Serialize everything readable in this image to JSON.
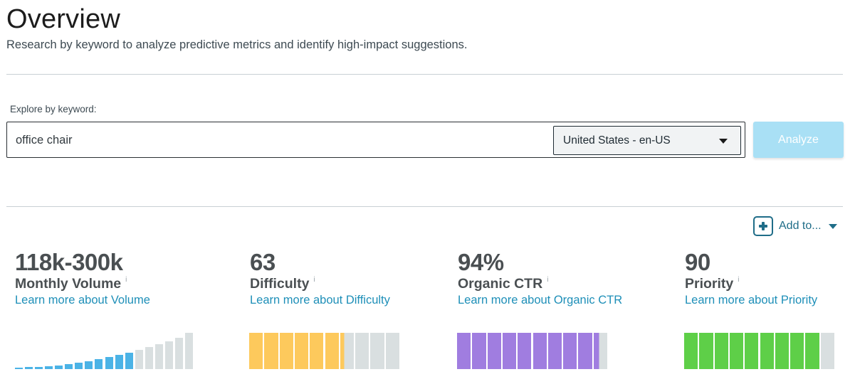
{
  "header": {
    "title": "Overview",
    "subtitle": "Research by keyword to analyze predictive metrics and identify high-impact suggestions."
  },
  "search": {
    "label": "Explore by keyword:",
    "value": "office chair",
    "locale": "United States - en-US",
    "analyze_label": "Analyze"
  },
  "add_to": {
    "label": "Add to..."
  },
  "metrics": [
    {
      "value": "118k-300k",
      "label": "Monthly Volume",
      "info": "i",
      "link": "Learn more about Volume",
      "type": "volume",
      "levels": [
        0.04,
        0.05,
        0.06,
        0.08,
        0.1,
        0.13,
        0.17,
        0.21,
        0.27,
        0.33,
        0.4,
        0.45,
        0.52,
        0.6,
        0.68,
        0.77,
        0.87,
        1.0
      ],
      "active_count": 12,
      "active_color": "#4bb3e6",
      "inactive_color": "#d9dfe0"
    },
    {
      "value": "63",
      "label": "Difficulty",
      "info": "i",
      "link": "Learn more about Difficulty",
      "type": "segments",
      "segments": 10,
      "fill": 0.63,
      "active_color": "#fdc95c",
      "inactive_color": "#d9dfe0"
    },
    {
      "value": "94%",
      "label": "Organic CTR",
      "info": "i",
      "link": "Learn more about Organic CTR",
      "type": "segments",
      "segments": 10,
      "fill": 0.94,
      "active_color": "#a07de0",
      "inactive_color": "#d9dfe0"
    },
    {
      "value": "90",
      "label": "Priority",
      "info": "i",
      "link": "Learn more about Priority",
      "type": "segments",
      "segments": 10,
      "fill": 0.9,
      "active_color": "#5ecf48",
      "inactive_color": "#d9dfe0"
    }
  ]
}
